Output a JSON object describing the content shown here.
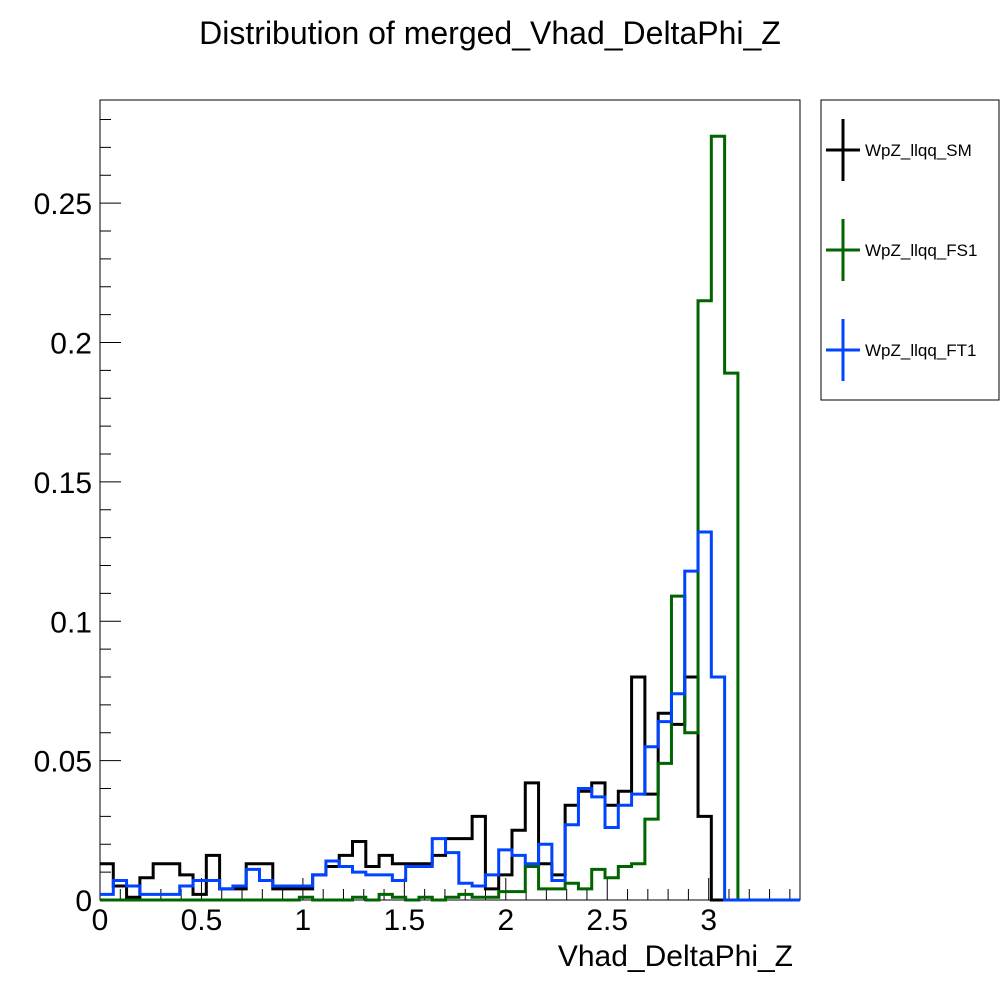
{
  "chart_data": {
    "type": "line",
    "step": true,
    "title": "Distribution of merged_Vhad_DeltaPhi_Z",
    "xlabel": "Vhad_DeltaPhi_Z",
    "ylabel": "",
    "xlim": [
      0,
      3.45
    ],
    "ylim": [
      0,
      0.287
    ],
    "grid": false,
    "legend_position": "top-right, outside plot",
    "x_ticks": [
      0,
      0.5,
      1,
      1.5,
      2,
      2.5,
      3
    ],
    "x_tick_labels": [
      "0",
      "0.5",
      "1",
      "1.5",
      "2",
      "2.5",
      "3"
    ],
    "y_ticks": [
      0,
      0.05,
      0.1,
      0.15,
      0.2,
      0.25
    ],
    "y_tick_labels": [
      "0",
      "0.05",
      "0.1",
      "0.15",
      "0.2",
      "0.25"
    ],
    "bin_width": 0.0655,
    "series": [
      {
        "name": "WpZ_llqq_SM",
        "color": "#000000",
        "values": [
          0.013,
          0.005,
          0.001,
          0.008,
          0.013,
          0.013,
          0.009,
          0.002,
          0.016,
          0.004,
          0.004,
          0.013,
          0.013,
          0.004,
          0.004,
          0.004,
          0.009,
          0.012,
          0.016,
          0.021,
          0.012,
          0.016,
          0.013,
          0.013,
          0.013,
          0.016,
          0.022,
          0.022,
          0.03,
          0.004,
          0.009,
          0.025,
          0.042,
          0.013,
          0.009,
          0.034,
          0.039,
          0.042,
          0.034,
          0.039,
          0.08,
          0.038,
          0.067,
          0.063,
          0.08,
          0.03,
          0,
          0,
          0,
          0,
          0,
          0,
          0
        ]
      },
      {
        "name": "WpZ_llqq_FS1",
        "color": "#006400",
        "values": [
          0,
          0,
          0,
          0,
          0,
          0,
          0,
          0,
          0,
          0,
          0,
          0,
          0,
          0,
          0,
          0.001,
          0,
          0,
          0,
          0.001,
          0,
          0.002,
          0.001,
          0,
          0.001,
          0,
          0.001,
          0.002,
          0.001,
          0.001,
          0.003,
          0.003,
          0.012,
          0.004,
          0.004,
          0.006,
          0.004,
          0.011,
          0.008,
          0.012,
          0.013,
          0.029,
          0.049,
          0.109,
          0.06,
          0.215,
          0.274,
          0.189,
          0,
          0,
          0,
          0,
          0
        ]
      },
      {
        "name": "WpZ_llqq_FT1",
        "color": "#0044ff",
        "values": [
          0.002,
          0.007,
          0.005,
          0.002,
          0.002,
          0.002,
          0.005,
          0.007,
          0.007,
          0.004,
          0.005,
          0.011,
          0.007,
          0.005,
          0.005,
          0.005,
          0.009,
          0.014,
          0.012,
          0.01,
          0.009,
          0.009,
          0.007,
          0.012,
          0.012,
          0.022,
          0.017,
          0.006,
          0.005,
          0.009,
          0.018,
          0.016,
          0.013,
          0.02,
          0.007,
          0.027,
          0.04,
          0.037,
          0.026,
          0.034,
          0.038,
          0.055,
          0.064,
          0.074,
          0.118,
          0.132,
          0.08,
          0,
          0,
          0,
          0,
          0,
          0
        ]
      }
    ]
  }
}
